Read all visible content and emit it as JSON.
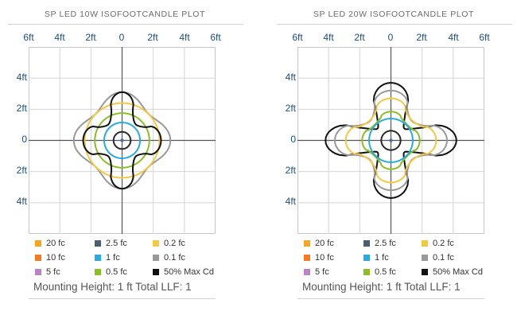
{
  "chart_data": [
    {
      "type": "contour",
      "title": "SP LED 10W ISOFOOTCANDLE PLOT",
      "x_tick_labels": [
        "6ft",
        "4ft",
        "2ft",
        "0",
        "2ft",
        "4ft",
        "6ft"
      ],
      "y_tick_labels": [
        "4ft",
        "2ft",
        "0",
        "2ft",
        "4ft"
      ],
      "xlim": [
        -6,
        6
      ],
      "ylim": [
        -6,
        6
      ],
      "grid": true,
      "contours": [
        {
          "label": "0.1 fc",
          "color": "#999999",
          "shape": "diamond",
          "rx": 3.1,
          "ry": 3.1,
          "k": 0.45
        },
        {
          "label": "0.2 fc",
          "color": "#f5c842",
          "shape": "ellipse",
          "rx": 2.4,
          "ry": 2.4
        },
        {
          "label": "0.5 fc",
          "color": "#8cbf26",
          "shape": "ellipse",
          "rx": 1.75,
          "ry": 1.75
        },
        {
          "label": "1 fc",
          "color": "#29abe2",
          "shape": "ellipse",
          "rx": 1.15,
          "ry": 1.15
        },
        {
          "label": "50% Max Cd",
          "color": "#111111",
          "shape": "cross",
          "rx": 2.5,
          "ry": 3.1,
          "k": -0.35
        },
        {
          "label": "2.5 fc",
          "color": "#2a2a2a",
          "shape": "ellipse",
          "rx": 0.55,
          "ry": 0.55
        }
      ],
      "center_dot_color": "#4a6fa5",
      "legend": [
        {
          "label": "20 fc",
          "color": "#f5a623"
        },
        {
          "label": "10 fc",
          "color": "#f47b20"
        },
        {
          "label": "5 fc",
          "color": "#b784c4"
        },
        {
          "label": "2.5 fc",
          "color": "#4a5f70"
        },
        {
          "label": "1 fc",
          "color": "#29abe2"
        },
        {
          "label": "0.5 fc",
          "color": "#8cbf26"
        },
        {
          "label": "0.2 fc",
          "color": "#f5c842"
        },
        {
          "label": "0.1 fc",
          "color": "#999999"
        },
        {
          "label": "50% Max Cd",
          "color": "#111111"
        }
      ],
      "footer": "Mounting Height: 1 ft  Total LLF: 1"
    },
    {
      "type": "contour",
      "title": "SP LED 20W ISOFOOTCANDLE PLOT",
      "x_tick_labels": [
        "6ft",
        "4ft",
        "2ft",
        "0",
        "2ft",
        "4ft",
        "6ft"
      ],
      "y_tick_labels": [
        "4ft",
        "2ft",
        "0",
        "2ft",
        "4ft"
      ],
      "xlim": [
        -6,
        6
      ],
      "ylim": [
        -6,
        6
      ],
      "grid": true,
      "contours": [
        {
          "label": "50% Max Cd",
          "color": "#111111",
          "shape": "cross",
          "rx": 4.2,
          "ry": 3.7,
          "k": -0.55
        },
        {
          "label": "0.1 fc",
          "color": "#999999",
          "shape": "cross",
          "rx": 3.6,
          "ry": 3.2,
          "k": -0.3
        },
        {
          "label": "0.2 fc",
          "color": "#f5c842",
          "shape": "cross",
          "rx": 2.9,
          "ry": 2.7,
          "k": -0.2
        },
        {
          "label": "0.5 fc",
          "color": "#8cbf26",
          "shape": "cross",
          "rx": 1.85,
          "ry": 1.85,
          "k": -0.12
        },
        {
          "label": "1 fc",
          "color": "#29abe2",
          "shape": "ellipse",
          "rx": 1.4,
          "ry": 1.4
        },
        {
          "label": "2.5 fc",
          "color": "#2a2a2a",
          "shape": "ellipse",
          "rx": 0.62,
          "ry": 0.62
        }
      ],
      "center_dot_color": "#4a6fa5",
      "legend": [
        {
          "label": "20 fc",
          "color": "#f5a623"
        },
        {
          "label": "10 fc",
          "color": "#f47b20"
        },
        {
          "label": "5 fc",
          "color": "#b784c4"
        },
        {
          "label": "2.5 fc",
          "color": "#4a5f70"
        },
        {
          "label": "1 fc",
          "color": "#29abe2"
        },
        {
          "label": "0.5 fc",
          "color": "#8cbf26"
        },
        {
          "label": "0.2 fc",
          "color": "#f5c842"
        },
        {
          "label": "0.1 fc",
          "color": "#999999"
        },
        {
          "label": "50% Max Cd",
          "color": "#111111"
        }
      ],
      "footer": "Mounting Height: 1 ft  Total LLF: 1"
    }
  ]
}
